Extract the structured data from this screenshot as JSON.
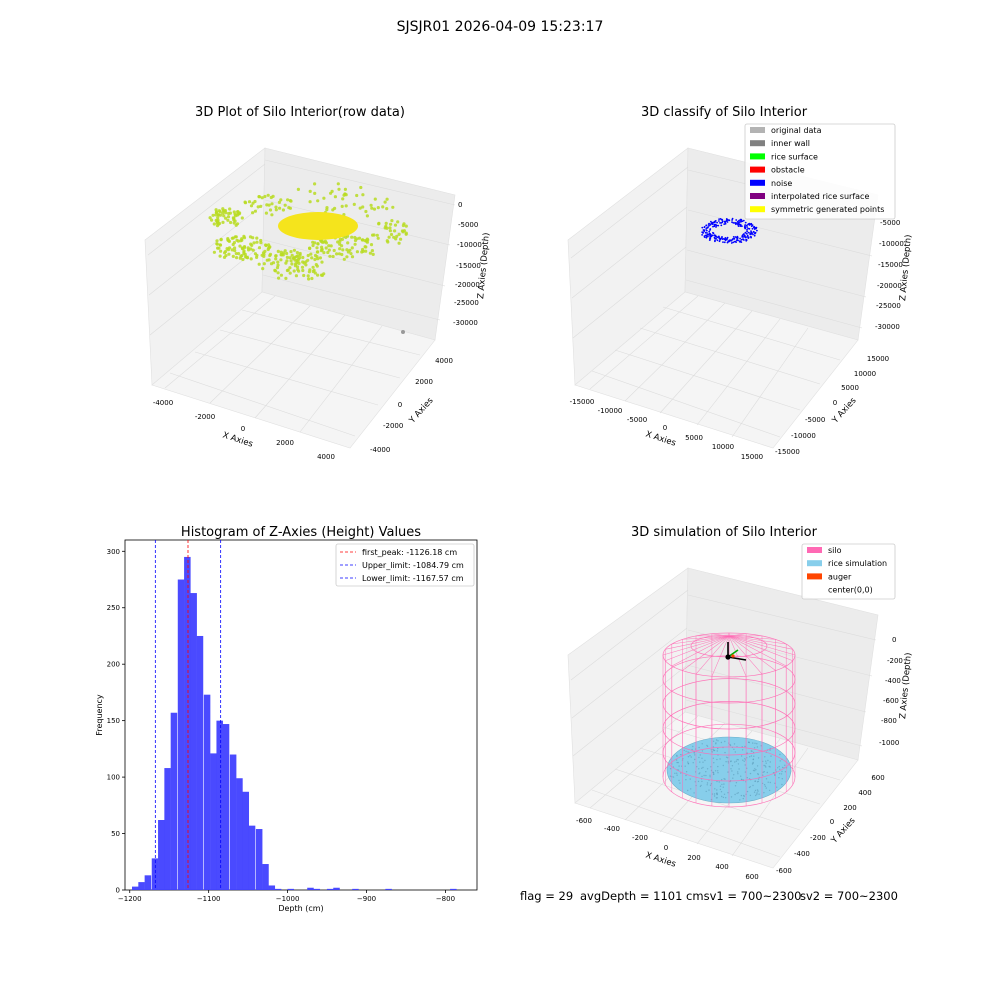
{
  "suptitle": "SJSJR01 2026-04-09 15:23:17",
  "footer": {
    "flag": "flag = 29",
    "avg": "avgDepth = 1101 cmsv1 = 700~2300",
    "sv2": "sv2 = 700~2300"
  },
  "chart_data": [
    {
      "type": "scatter3d",
      "title": "3D Plot of Silo Interior(row data)",
      "xlabel": "X Axies",
      "ylabel": "Y Axies",
      "zlabel": "Z Axies (Depth)",
      "xticks": [
        "-4000",
        "-2000",
        "0",
        "2000",
        "4000"
      ],
      "yticks": [
        "-4000",
        "-2000",
        "0",
        "2000",
        "4000"
      ],
      "zticks": [
        "0",
        "-5000",
        "-10000",
        "-15000",
        "-20000",
        "-25000",
        "-30000"
      ],
      "colors": {
        "points": "#b8dc22",
        "surface": "#f5e41c",
        "outlier": "#999999"
      }
    },
    {
      "type": "scatter3d",
      "title": "3D classify of Silo Interior",
      "xlabel": "X Axies",
      "ylabel": "Y Axies",
      "zlabel": "Z Axies (Depth)",
      "xticks": [
        "-15000",
        "-10000",
        "-5000",
        "0",
        "5000",
        "10000",
        "15000"
      ],
      "yticks": [
        "-15000",
        "-10000",
        "-5000",
        "0",
        "5000",
        "10000",
        "15000"
      ],
      "zticks": [
        "-5000",
        "-10000",
        "-15000",
        "-20000",
        "-25000",
        "-30000"
      ],
      "legend_placement": "upper-right",
      "legend": [
        {
          "label": "original data",
          "color": "#b3b3b3"
        },
        {
          "label": "inner wall",
          "color": "#808080"
        },
        {
          "label": "rice surface",
          "color": "#00ff00"
        },
        {
          "label": "obstacle",
          "color": "#ff0000"
        },
        {
          "label": "noise",
          "color": "#0000ff"
        },
        {
          "label": "interpolated rice surface",
          "color": "#800080"
        },
        {
          "label": "symmetric generated points",
          "color": "#ffff00"
        }
      ]
    },
    {
      "type": "bar",
      "title": "Histogram of Z-Axies (Height) Values",
      "xlabel": "Depth (cm)",
      "ylabel": "Frequency",
      "xlim": [
        -1206,
        -760
      ],
      "ylim": [
        0,
        310
      ],
      "xticks": [
        -1200,
        -1100,
        -1000,
        -900,
        -800
      ],
      "yticks": [
        0,
        50,
        100,
        150,
        200,
        250,
        300
      ],
      "bin_width": 8.25,
      "bar_color": "#4040ff",
      "bins": [
        {
          "x": -1193,
          "y": 3
        },
        {
          "x": -1185,
          "y": 7
        },
        {
          "x": -1177,
          "y": 13
        },
        {
          "x": -1168,
          "y": 28
        },
        {
          "x": -1160,
          "y": 62
        },
        {
          "x": -1152,
          "y": 108
        },
        {
          "x": -1144,
          "y": 157
        },
        {
          "x": -1135,
          "y": 275
        },
        {
          "x": -1127,
          "y": 295
        },
        {
          "x": -1119,
          "y": 263
        },
        {
          "x": -1111,
          "y": 225
        },
        {
          "x": -1102,
          "y": 173
        },
        {
          "x": -1094,
          "y": 121
        },
        {
          "x": -1086,
          "y": 150
        },
        {
          "x": -1078,
          "y": 147
        },
        {
          "x": -1069,
          "y": 120
        },
        {
          "x": -1061,
          "y": 99
        },
        {
          "x": -1053,
          "y": 87
        },
        {
          "x": -1045,
          "y": 57
        },
        {
          "x": -1036,
          "y": 54
        },
        {
          "x": -1028,
          "y": 23
        },
        {
          "x": -1020,
          "y": 4
        },
        {
          "x": -1012,
          "y": 1
        },
        {
          "x": -996,
          "y": 1
        },
        {
          "x": -971,
          "y": 2
        },
        {
          "x": -963,
          "y": 1
        },
        {
          "x": -946,
          "y": 1
        },
        {
          "x": -938,
          "y": 2
        },
        {
          "x": -914,
          "y": 1
        },
        {
          "x": -872,
          "y": 1
        },
        {
          "x": -790,
          "y": 1
        }
      ],
      "lines": [
        {
          "label": "first_peak: -1126.18 cm",
          "x": -1126.18,
          "color": "#ff0000"
        },
        {
          "label": "Upper_limit: -1084.79 cm",
          "x": -1084.79,
          "color": "#0000ff"
        },
        {
          "label": "Lower_limit: -1167.57 cm",
          "x": -1167.57,
          "color": "#0000ff"
        }
      ]
    },
    {
      "type": "surface3d",
      "title": "3D simulation of Silo Interior",
      "xlabel": "X Axies",
      "ylabel": "Y Axies",
      "zlabel": "Z Axies (Depth)",
      "xticks": [
        "-600",
        "-400",
        "-200",
        "0",
        "200",
        "400",
        "600"
      ],
      "yticks": [
        "-600",
        "-400",
        "-200",
        "0",
        "200",
        "400",
        "600"
      ],
      "zticks": [
        "0",
        "-200",
        "-400",
        "-600",
        "-800",
        "-1000"
      ],
      "legend_placement": "upper-right",
      "legend": [
        {
          "label": "silo",
          "color": "#ff69b4"
        },
        {
          "label": "rice simulation",
          "color": "#87ceeb"
        },
        {
          "label": "auger",
          "color": "#ff4500"
        },
        {
          "label": "center(0,0)",
          "color": ""
        }
      ]
    }
  ]
}
